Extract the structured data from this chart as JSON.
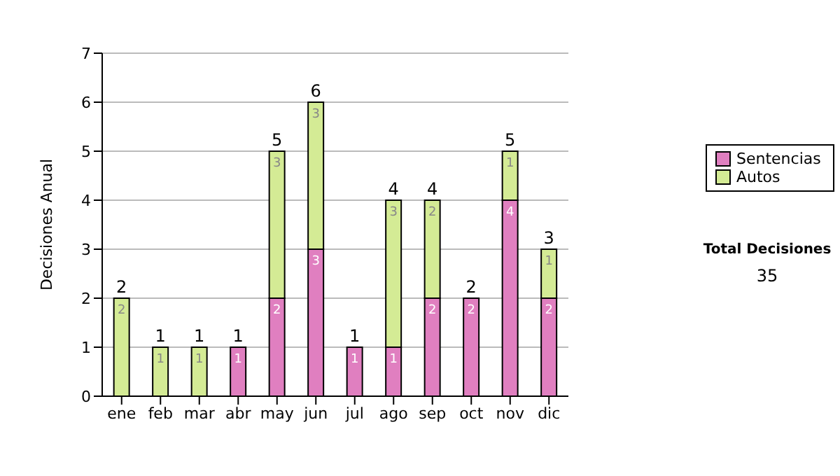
{
  "chart_data": {
    "type": "bar",
    "stacked": true,
    "ylabel": "Decisiones Anual",
    "categories": [
      "ene",
      "feb",
      "mar",
      "abr",
      "may",
      "jun",
      "jul",
      "ago",
      "sep",
      "oct",
      "nov",
      "dic"
    ],
    "series": [
      {
        "name": "Sentencias",
        "color": "#e07fc0",
        "values": [
          0,
          0,
          0,
          1,
          2,
          3,
          1,
          1,
          2,
          2,
          4,
          2
        ],
        "value_labels": [
          null,
          null,
          null,
          "1",
          "2",
          "3",
          "1",
          "1",
          "2",
          "2",
          "4",
          "2"
        ]
      },
      {
        "name": "Autos",
        "color": "#d4eb95",
        "values": [
          2,
          1,
          1,
          0,
          3,
          3,
          0,
          3,
          2,
          0,
          1,
          1
        ],
        "value_labels": [
          "2",
          "1",
          "1",
          null,
          "3",
          "3",
          null,
          "3",
          "2",
          null,
          "1",
          "1"
        ]
      }
    ],
    "totals": [
      "2",
      "1",
      "1",
      "1",
      "5",
      "6",
      "1",
      "4",
      "4",
      "2",
      "5",
      "3"
    ],
    "ylim": [
      0,
      7
    ],
    "yticks": [
      0,
      1,
      2,
      3,
      4,
      5,
      6,
      7
    ],
    "grid": "y",
    "legend": "right",
    "annotations": [
      "Total Decisiones",
      "35"
    ]
  }
}
